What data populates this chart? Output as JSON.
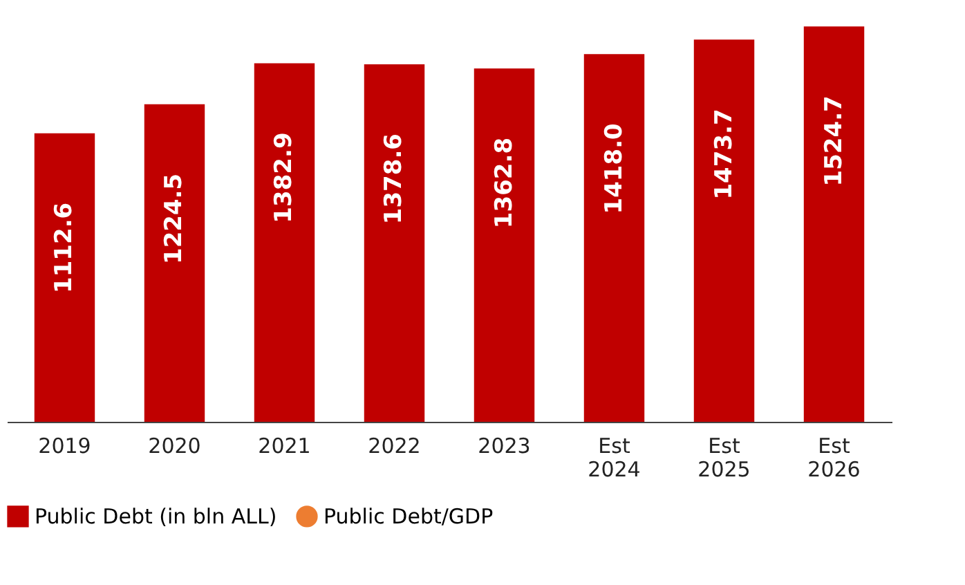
{
  "chart_data": {
    "type": "bar",
    "categories": [
      "2019",
      "2020",
      "2021",
      "2022",
      "2023",
      "Est 2024",
      "Est 2025",
      "Est 2026"
    ],
    "series": [
      {
        "name": "Public Debt (in bln ALL)",
        "color": "#c00000",
        "values": [
          1112.6,
          1224.5,
          1382.9,
          1378.6,
          1362.8,
          1418.0,
          1473.7,
          1524.7
        ],
        "value_labels": [
          "1112.6",
          "1224.5",
          "1382.9",
          "1378.6",
          "1362.8",
          "1418.0",
          "1473.7",
          "1524.7"
        ]
      },
      {
        "name": "Public Debt/GDP",
        "type": "line",
        "marker": "circle",
        "color": "#ed7d31",
        "values": [
          null,
          null,
          null,
          null,
          null,
          null,
          null,
          null
        ]
      }
    ],
    "data_labels": true,
    "legend": "bottom",
    "grid": false
  }
}
